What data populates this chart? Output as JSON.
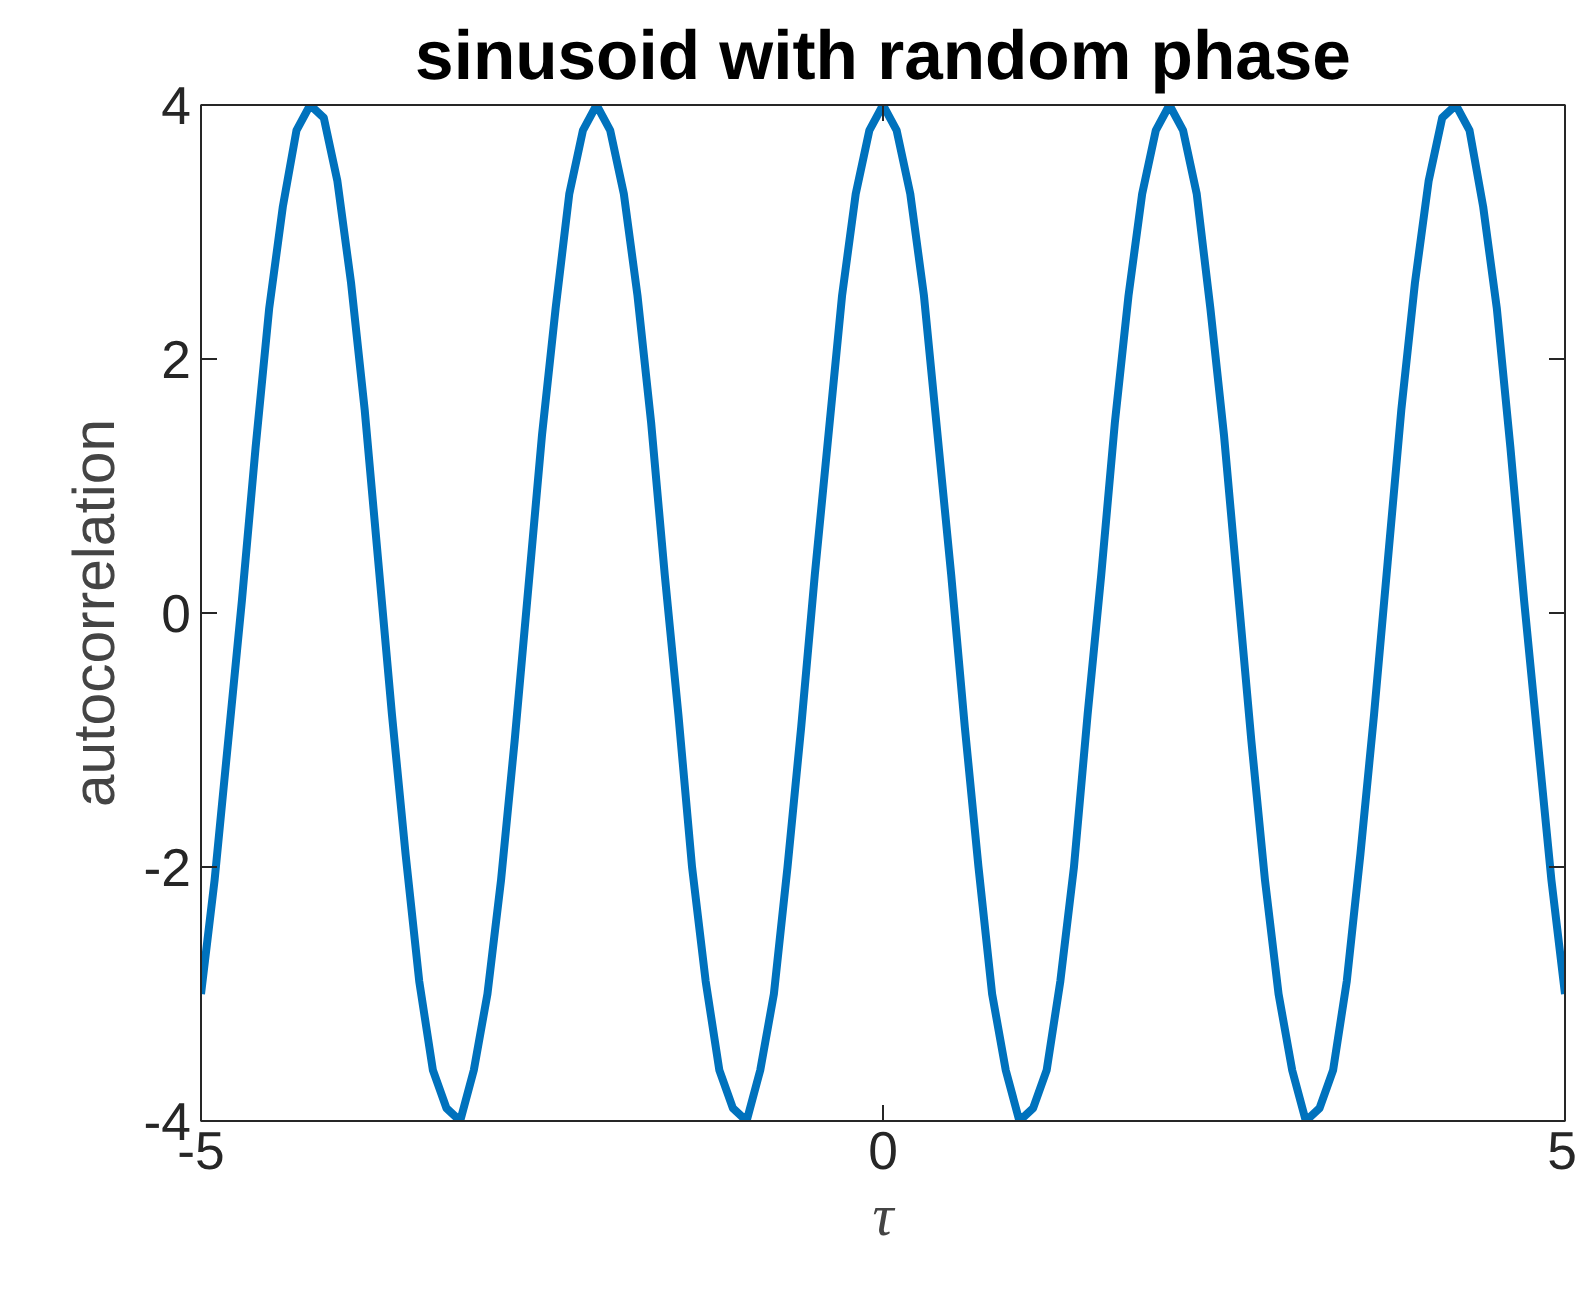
{
  "chart_data": {
    "type": "line",
    "title": "sinusoid with random phase",
    "xlabel": "τ",
    "ylabel": "autocorrelation",
    "xlim": [
      -5,
      5
    ],
    "ylim": [
      -4,
      4
    ],
    "xticks": [
      -5,
      0,
      5
    ],
    "yticks": [
      -4,
      -2,
      0,
      2,
      4
    ],
    "grid": false,
    "marker": "none",
    "line_style": "solid",
    "x": [
      -5,
      -4.9,
      -4.8,
      -4.7,
      -4.6,
      -4.5,
      -4.4,
      -4.3,
      -4.2,
      -4.1,
      -4,
      -3.9,
      -3.8,
      -3.7,
      -3.6,
      -3.5,
      -3.4,
      -3.3,
      -3.2,
      -3.1,
      -3,
      -2.9,
      -2.8,
      -2.7,
      -2.6,
      -2.5,
      -2.4,
      -2.3,
      -2.2,
      -2.1,
      -2,
      -1.9,
      -1.8,
      -1.7,
      -1.6,
      -1.5,
      -1.4,
      -1.3,
      -1.2,
      -1.1,
      -1,
      -0.9,
      -0.8,
      -0.7,
      -0.6,
      -0.5,
      -0.4,
      -0.3,
      -0.2,
      -0.1,
      0,
      0.1,
      0.2,
      0.3,
      0.4,
      0.5,
      0.6,
      0.7,
      0.8,
      0.9,
      1,
      1.1,
      1.2,
      1.3,
      1.4,
      1.5,
      1.6,
      1.7,
      1.8,
      1.9,
      2,
      2.1,
      2.2,
      2.3,
      2.4,
      2.5,
      2.6,
      2.7,
      2.8,
      2.9,
      3,
      3.1,
      3.2,
      3.3,
      3.4,
      3.5,
      3.6,
      3.7,
      3.8,
      3.9,
      4,
      4.1,
      4.2,
      4.3,
      4.4,
      4.5,
      4.6,
      4.7,
      4.8,
      4.9,
      5
    ],
    "series": [
      {
        "color": "#0072bd",
        "values": [
          -3,
          -2.1,
          -1,
          0.1,
          1.3,
          2.4,
          3.2,
          3.8,
          4,
          3.9,
          3.4,
          2.6,
          1.6,
          0.4,
          -0.8,
          -1.9,
          -2.9,
          -3.6,
          -3.9,
          -4,
          -3.6,
          -3,
          -2.1,
          -1,
          0.2,
          1.4,
          2.4,
          3.3,
          3.8,
          4,
          3.8,
          3.3,
          2.5,
          1.5,
          0.3,
          -0.8,
          -2,
          -2.9,
          -3.6,
          -3.9,
          -4,
          -3.6,
          -3,
          -2,
          -0.9,
          0.3,
          1.4,
          2.5,
          3.3,
          3.8,
          4,
          3.8,
          3.3,
          2.5,
          1.4,
          0.3,
          -0.9,
          -2,
          -3,
          -3.6,
          -4,
          -3.9,
          -3.6,
          -2.9,
          -2,
          -0.8,
          0.3,
          1.5,
          2.5,
          3.3,
          3.8,
          4,
          3.8,
          3.3,
          2.4,
          1.4,
          0.2,
          -1,
          -2.1,
          -3,
          -3.6,
          -4,
          -3.9,
          -3.6,
          -2.9,
          -1.9,
          -0.8,
          0.4,
          1.6,
          2.6,
          3.4,
          3.9,
          4,
          3.8,
          3.2,
          2.4,
          1.3,
          0.1,
          -1,
          -2.1,
          -3
        ]
      }
    ]
  }
}
